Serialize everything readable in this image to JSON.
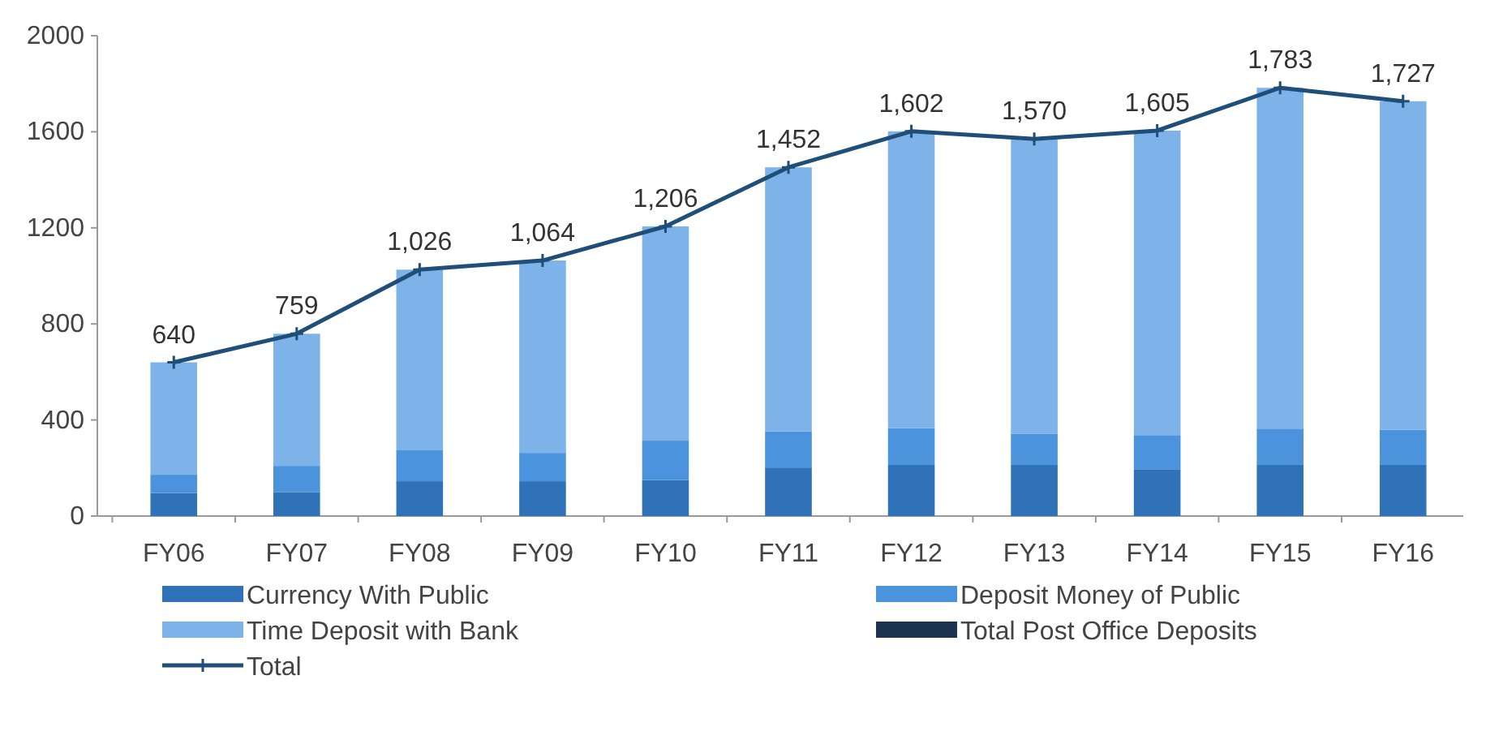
{
  "chart_data": {
    "type": "bar",
    "stacked": true,
    "categories": [
      "FY06",
      "FY07",
      "FY08",
      "FY09",
      "FY10",
      "FY11",
      "FY12",
      "FY13",
      "FY14",
      "FY15",
      "FY16"
    ],
    "series": [
      {
        "name": "Currency With Public",
        "color": "#2f72b8",
        "values": [
          96,
          100,
          145,
          145,
          150,
          202,
          213,
          213,
          195,
          213,
          213
        ]
      },
      {
        "name": "Deposit Money of Public",
        "color": "#4b93dc",
        "values": [
          76,
          109,
          131,
          118,
          164,
          150,
          153,
          130,
          142,
          151,
          146
        ]
      },
      {
        "name": "Time Deposit with Bank",
        "color": "#7db3e8",
        "values": [
          468,
          550,
          750,
          801,
          892,
          1100,
          1236,
          1227,
          1268,
          1419,
          1368
        ]
      },
      {
        "name": "Total Post Office Deposits",
        "color": "#1c3350",
        "values": [
          0,
          0,
          0,
          0,
          0,
          0,
          0,
          0,
          0,
          0,
          0
        ]
      },
      {
        "name": "Total",
        "type": "line",
        "color": "#1f4e79",
        "values": [
          640,
          759,
          1026,
          1064,
          1206,
          1452,
          1602,
          1570,
          1605,
          1783,
          1727
        ],
        "value_labels": [
          "640",
          "759",
          "1,026",
          "1,064",
          "1,206",
          "1,452",
          "1,602",
          "1,570",
          "1,605",
          "1,783",
          "1,727"
        ]
      }
    ],
    "ylim": [
      0,
      2000
    ],
    "yticks": [
      0,
      400,
      800,
      1200,
      1600,
      2000
    ],
    "grid": false,
    "legend": "bottom",
    "marker": "cross"
  }
}
